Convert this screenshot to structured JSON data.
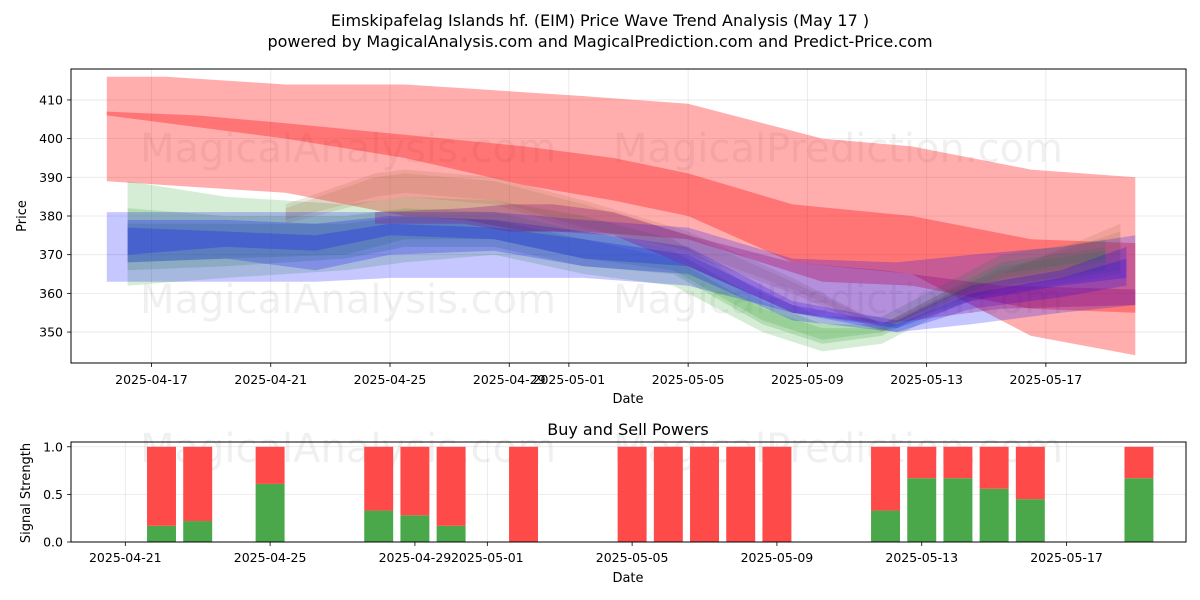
{
  "title_line1": "Eimskipafelag Islands hf. (EIM) Price Wave Trend Analysis (May 17 )",
  "title_line2": "powered by MagicalAnalysis.com and MagicalPrediction.com and Predict-Price.com",
  "watermarks": [
    "MagicalAnalysis.com",
    "MagicalPrediction.com"
  ],
  "colors": {
    "red": "#ff0000",
    "green": "#2ca02c",
    "blue": "#0000ff",
    "purple": "#800080",
    "buy_bar": "#4aa84a",
    "sell_bar": "#ff4a4a"
  },
  "chart_data": [
    {
      "type": "area",
      "title": "",
      "xlabel": "Date",
      "ylabel": "Price",
      "ylim": [
        342,
        418
      ],
      "x_start": "2025-04-15",
      "x_end": "2025-05-21",
      "xticks": [
        {
          "day": 1.5,
          "label": "2025-04-17"
        },
        {
          "day": 5.5,
          "label": "2025-04-21"
        },
        {
          "day": 9.5,
          "label": "2025-04-25"
        },
        {
          "day": 13.5,
          "label": "2025-04-29"
        },
        {
          "day": 15.5,
          "label": "2025-05-01"
        },
        {
          "day": 19.5,
          "label": "2025-05-05"
        },
        {
          "day": 23.5,
          "label": "2025-05-09"
        },
        {
          "day": 27.5,
          "label": "2025-05-13"
        },
        {
          "day": 31.5,
          "label": "2025-05-17"
        }
      ],
      "yticks": [
        350,
        360,
        370,
        380,
        390,
        400,
        410
      ],
      "grid": true,
      "bands": [
        {
          "name": "red-upper",
          "color": "red",
          "opacity": 0.32,
          "x": [
            0,
            2,
            6,
            10,
            12,
            14,
            16,
            19.5,
            24,
            27,
            31,
            34.5
          ],
          "lower": [
            389,
            388,
            386,
            380,
            379,
            376,
            376,
            374,
            363,
            362,
            356,
            355
          ],
          "upper": [
            416,
            416,
            414,
            414,
            413,
            412,
            411,
            409,
            400,
            398,
            392,
            390
          ]
        },
        {
          "name": "red-lower",
          "color": "red",
          "opacity": 0.32,
          "x": [
            0,
            3,
            6,
            10,
            14,
            17,
            19.5,
            23,
            27,
            31,
            34.5
          ],
          "lower": [
            406,
            403,
            400,
            395,
            388,
            384,
            380,
            368,
            365,
            349,
            344
          ],
          "upper": [
            407,
            406,
            404,
            401,
            398,
            395,
            391,
            383,
            380,
            374,
            373
          ]
        },
        {
          "name": "green-1",
          "color": "green",
          "opacity": 0.2,
          "x": [
            0.7,
            4,
            8,
            10,
            13,
            16,
            19,
            22,
            24,
            26,
            28,
            30,
            33.5
          ],
          "lower": [
            362,
            364,
            366,
            368,
            370,
            365,
            362,
            350,
            345,
            347,
            355,
            362,
            366
          ],
          "upper": [
            389,
            385,
            383,
            385,
            384,
            380,
            374,
            360,
            354,
            354,
            362,
            370,
            374
          ]
        },
        {
          "name": "green-2",
          "color": "green",
          "opacity": 0.2,
          "x": [
            0.7,
            4,
            8,
            10,
            13,
            16,
            19,
            22,
            24,
            26,
            28,
            30,
            33.5
          ],
          "lower": [
            366,
            367,
            369,
            372,
            372,
            367,
            365,
            352,
            347,
            349,
            357,
            364,
            368
          ],
          "upper": [
            382,
            380,
            380,
            382,
            381,
            376,
            371,
            358,
            352,
            352,
            360,
            368,
            372
          ]
        },
        {
          "name": "green-3",
          "color": "green",
          "opacity": 0.2,
          "x": [
            0.7,
            4,
            8,
            10,
            13,
            16,
            19,
            22,
            24,
            26,
            28,
            30,
            33.5
          ],
          "lower": [
            368,
            369,
            370,
            374,
            374,
            369,
            366,
            353,
            348,
            350,
            358,
            365,
            369
          ],
          "upper": [
            378,
            378,
            378,
            380,
            379,
            374,
            369,
            356,
            351,
            351,
            359,
            367,
            371
          ]
        },
        {
          "name": "brown-1",
          "color": "#8b5a2b",
          "opacity": 0.14,
          "x": [
            6,
            9,
            10,
            13,
            16,
            19.5,
            23,
            26,
            28,
            30,
            34
          ],
          "lower": [
            378,
            384,
            385,
            383,
            376,
            370,
            360,
            350,
            356,
            360,
            365
          ],
          "upper": [
            383,
            391,
            392,
            390,
            384,
            376,
            364,
            352,
            360,
            366,
            376
          ]
        },
        {
          "name": "brown-2",
          "color": "#8b5a2b",
          "opacity": 0.14,
          "x": [
            6,
            9,
            10,
            13,
            16,
            19.5,
            23,
            26,
            28,
            30,
            34
          ],
          "lower": [
            379,
            385,
            386,
            384,
            377,
            371,
            361,
            351,
            357,
            361,
            366
          ],
          "upper": [
            382,
            390,
            391,
            389,
            383,
            375,
            363,
            352,
            359,
            365,
            378
          ]
        },
        {
          "name": "blue-1",
          "color": "blue",
          "opacity": 0.22,
          "x": [
            0,
            4,
            7,
            9.5,
            13,
            16,
            19.5,
            23,
            26.5,
            29,
            32,
            34.5
          ],
          "lower": [
            363,
            363,
            363,
            364,
            364,
            364,
            362,
            355,
            350,
            352,
            355,
            357
          ],
          "upper": [
            381,
            381,
            381,
            381,
            381,
            379,
            377,
            369,
            368,
            370,
            372,
            375
          ]
        },
        {
          "name": "blue-2",
          "color": "blue",
          "opacity": 0.22,
          "x": [
            0.7,
            4,
            7,
            9.5,
            13,
            16,
            19.5,
            23,
            26.5,
            29,
            32,
            34.2
          ],
          "lower": [
            368,
            369,
            366,
            370,
            371,
            367,
            365,
            353,
            350,
            356,
            359,
            362
          ],
          "upper": [
            379,
            379,
            378,
            380,
            379,
            376,
            372,
            358,
            353,
            362,
            366,
            372
          ]
        },
        {
          "name": "blue-3",
          "color": "blue",
          "opacity": 0.22,
          "x": [
            0.7,
            4,
            7,
            9.5,
            13,
            16,
            19.5,
            23,
            26.5,
            29,
            32,
            34.2
          ],
          "lower": [
            370,
            372,
            371,
            375,
            374,
            369,
            367,
            355,
            351,
            358,
            362,
            364
          ],
          "upper": [
            377,
            376,
            375,
            378,
            377,
            374,
            370,
            357,
            352,
            360,
            364,
            369
          ]
        },
        {
          "name": "purple-1",
          "color": "purple",
          "opacity": 0.28,
          "x": [
            9,
            12,
            13.5,
            15,
            17,
            19.5,
            23,
            26,
            30,
            34.5
          ],
          "lower": [
            378,
            378,
            376,
            376,
            375,
            367,
            355,
            352,
            356,
            357
          ],
          "upper": [
            381,
            382,
            383,
            383,
            381,
            375,
            368,
            366,
            362,
            361
          ]
        }
      ]
    },
    {
      "type": "bar",
      "stacked": true,
      "title": "Buy and Sell Powers",
      "xlabel": "Date",
      "ylabel": "Signal Strength",
      "ylim": [
        0,
        1.05
      ],
      "x_start": "2025-04-20",
      "x_end": "2025-05-21",
      "xticks": [
        {
          "day": 1,
          "label": "2025-04-21"
        },
        {
          "day": 5,
          "label": "2025-04-25"
        },
        {
          "day": 9,
          "label": "2025-04-29"
        },
        {
          "day": 11,
          "label": "2025-05-01"
        },
        {
          "day": 15,
          "label": "2025-05-05"
        },
        {
          "day": 19,
          "label": "2025-05-09"
        },
        {
          "day": 23,
          "label": "2025-05-13"
        },
        {
          "day": 27,
          "label": "2025-05-17"
        }
      ],
      "yticks": [
        {
          "v": 0.0,
          "label": "0.0"
        },
        {
          "v": 0.5,
          "label": "0.5"
        },
        {
          "v": 1.0,
          "label": "1.0"
        }
      ],
      "grid": true,
      "series": [
        {
          "name": "Buy",
          "color": "buy_bar"
        },
        {
          "name": "Sell",
          "color": "sell_bar"
        }
      ],
      "bars": [
        {
          "date": "2025-04-22",
          "day": 2,
          "buy": 0.17,
          "sell": 0.83
        },
        {
          "date": "2025-04-23",
          "day": 3,
          "buy": 0.22,
          "sell": 0.78
        },
        {
          "date": "2025-04-25",
          "day": 5,
          "buy": 0.61,
          "sell": 0.39
        },
        {
          "date": "2025-04-28",
          "day": 8,
          "buy": 0.33,
          "sell": 0.67
        },
        {
          "date": "2025-04-29",
          "day": 9,
          "buy": 0.28,
          "sell": 0.72
        },
        {
          "date": "2025-04-30",
          "day": 10,
          "buy": 0.17,
          "sell": 0.83
        },
        {
          "date": "2025-05-02",
          "day": 12,
          "buy": 0.0,
          "sell": 1.0
        },
        {
          "date": "2025-05-05",
          "day": 15,
          "buy": 0.0,
          "sell": 1.0
        },
        {
          "date": "2025-05-06",
          "day": 16,
          "buy": 0.0,
          "sell": 1.0
        },
        {
          "date": "2025-05-07",
          "day": 17,
          "buy": 0.0,
          "sell": 1.0
        },
        {
          "date": "2025-05-08",
          "day": 18,
          "buy": 0.0,
          "sell": 1.0
        },
        {
          "date": "2025-05-09",
          "day": 19,
          "buy": 0.0,
          "sell": 1.0
        },
        {
          "date": "2025-05-12",
          "day": 22,
          "buy": 0.33,
          "sell": 0.67
        },
        {
          "date": "2025-05-13",
          "day": 23,
          "buy": 0.67,
          "sell": 0.33
        },
        {
          "date": "2025-05-14",
          "day": 24,
          "buy": 0.67,
          "sell": 0.33
        },
        {
          "date": "2025-05-15",
          "day": 25,
          "buy": 0.56,
          "sell": 0.44
        },
        {
          "date": "2025-05-16",
          "day": 26,
          "buy": 0.45,
          "sell": 0.55
        },
        {
          "date": "2025-05-19",
          "day": 29,
          "buy": 0.67,
          "sell": 0.33
        }
      ]
    }
  ]
}
